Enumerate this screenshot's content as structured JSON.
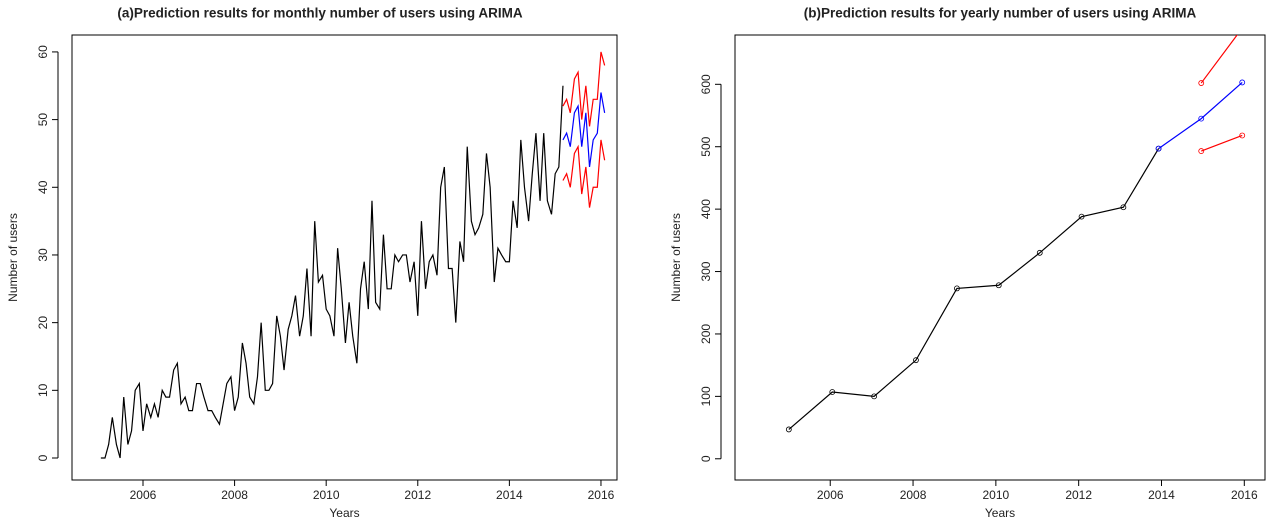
{
  "chart_data": [
    {
      "type": "line",
      "title": "(a)Prediction results for monthly number of users using ARIMA",
      "x_label": "Years",
      "y_label": "Number of users",
      "xlim": [
        2004.45,
        2016.35
      ],
      "ylim": [
        -3.25,
        62.5
      ],
      "xticks": [
        2006,
        2008,
        2010,
        2012,
        2014,
        2016
      ],
      "yticks": [
        0,
        10,
        20,
        30,
        40,
        50,
        60
      ],
      "markers": false,
      "series": [
        {
          "color": "#000000",
          "x": [
            2005.08,
            2005.17,
            2005.25,
            2005.33,
            2005.42,
            2005.5,
            2005.58,
            2005.67,
            2005.75,
            2005.83,
            2005.92,
            2006.0,
            2006.08,
            2006.17,
            2006.25,
            2006.33,
            2006.42,
            2006.5,
            2006.58,
            2006.67,
            2006.75,
            2006.83,
            2006.92,
            2007.0,
            2007.08,
            2007.17,
            2007.25,
            2007.33,
            2007.42,
            2007.5,
            2007.58,
            2007.67,
            2007.75,
            2007.83,
            2007.92,
            2008.0,
            2008.08,
            2008.17,
            2008.25,
            2008.33,
            2008.42,
            2008.5,
            2008.58,
            2008.67,
            2008.75,
            2008.83,
            2008.92,
            2009.0,
            2009.08,
            2009.17,
            2009.25,
            2009.33,
            2009.42,
            2009.5,
            2009.58,
            2009.67,
            2009.75,
            2009.83,
            2009.92,
            2010.0,
            2010.08,
            2010.17,
            2010.25,
            2010.33,
            2010.42,
            2010.5,
            2010.58,
            2010.67,
            2010.75,
            2010.83,
            2010.92,
            2011.0,
            2011.08,
            2011.17,
            2011.25,
            2011.33,
            2011.42,
            2011.5,
            2011.58,
            2011.67,
            2011.75,
            2011.83,
            2011.92,
            2012.0,
            2012.08,
            2012.17,
            2012.25,
            2012.33,
            2012.42,
            2012.5,
            2012.58,
            2012.67,
            2012.75,
            2012.83,
            2012.92,
            2013.0,
            2013.08,
            2013.17,
            2013.25,
            2013.33,
            2013.42,
            2013.5,
            2013.58,
            2013.67,
            2013.75,
            2013.83,
            2013.92,
            2014.0,
            2014.08,
            2014.17,
            2014.25,
            2014.33,
            2014.42,
            2014.5,
            2014.58,
            2014.67,
            2014.75,
            2014.83,
            2014.92,
            2015.0,
            2015.08,
            2015.17
          ],
          "values": [
            0,
            0,
            2,
            6,
            2,
            0,
            9,
            2,
            4,
            10,
            11,
            4,
            8,
            6,
            8,
            6,
            10,
            9,
            9,
            13,
            14,
            8,
            9,
            7,
            7,
            11,
            11,
            9,
            7,
            7,
            6,
            5,
            8,
            11,
            12,
            7,
            9,
            17,
            14,
            9,
            8,
            12,
            20,
            10,
            10,
            11,
            21,
            18,
            13,
            19,
            21,
            24,
            18,
            21,
            28,
            18,
            35,
            26,
            27,
            22,
            21,
            18,
            31,
            25,
            17,
            23,
            18,
            14,
            25,
            29,
            22,
            38,
            23,
            22,
            33,
            25,
            25,
            30,
            29,
            30,
            30,
            26,
            29,
            21,
            35,
            25,
            29,
            30,
            27,
            40,
            43,
            28,
            28,
            20,
            32,
            29,
            46,
            35,
            33,
            34,
            36,
            45,
            40,
            26,
            31,
            30,
            29,
            29,
            38,
            34,
            47,
            40,
            35,
            42,
            48,
            38,
            48,
            38,
            36,
            42,
            43,
            55
          ]
        },
        {
          "color": "#0000ff",
          "x": [
            2015.17,
            2015.25,
            2015.33,
            2015.42,
            2015.5,
            2015.58,
            2015.67,
            2015.75,
            2015.83,
            2015.92,
            2016.0,
            2016.08
          ],
          "values": [
            47,
            48,
            46,
            51,
            52,
            46,
            51,
            43,
            47,
            48,
            54,
            51
          ]
        },
        {
          "color": "#ff0000",
          "x": [
            2015.17,
            2015.25,
            2015.33,
            2015.42,
            2015.5,
            2015.58,
            2015.67,
            2015.75,
            2015.83,
            2015.92,
            2016.0,
            2016.08
          ],
          "values": [
            52,
            53,
            51,
            56,
            57,
            50,
            55,
            49,
            53,
            53,
            60,
            58
          ]
        },
        {
          "color": "#ff0000",
          "x": [
            2015.17,
            2015.25,
            2015.33,
            2015.42,
            2015.5,
            2015.58,
            2015.67,
            2015.75,
            2015.83,
            2015.92,
            2016.0,
            2016.08
          ],
          "values": [
            41,
            42,
            40,
            45,
            46,
            39,
            43,
            37,
            40,
            40,
            47,
            44
          ]
        }
      ]
    },
    {
      "type": "line",
      "title": "(b)Prediction results for yearly number of users using ARIMA",
      "x_label": "Years",
      "y_label": "Number of users",
      "xlim": [
        2003.7,
        2016.5
      ],
      "ylim": [
        -34,
        679
      ],
      "xticks": [
        2006,
        2008,
        2010,
        2012,
        2014,
        2016
      ],
      "yticks": [
        0,
        100,
        200,
        300,
        400,
        500,
        600
      ],
      "markers": true,
      "series": [
        {
          "color": "#000000",
          "x": [
            2005.0,
            2006.05,
            2007.06,
            2008.07,
            2009.06,
            2010.07,
            2011.06,
            2012.07,
            2013.08,
            2013.93
          ],
          "values": [
            47,
            107,
            100,
            158,
            273,
            278,
            330,
            388,
            403,
            497
          ]
        },
        {
          "color": "#0000ff",
          "x": [
            2013.93,
            2014.96,
            2015.95
          ],
          "values": [
            497,
            545,
            603
          ]
        },
        {
          "color": "#ff0000",
          "x": [
            2014.96,
            2015.95
          ],
          "values": [
            602,
            690
          ]
        },
        {
          "color": "#ff0000",
          "x": [
            2014.96,
            2015.95
          ],
          "values": [
            493,
            518
          ]
        }
      ]
    }
  ]
}
